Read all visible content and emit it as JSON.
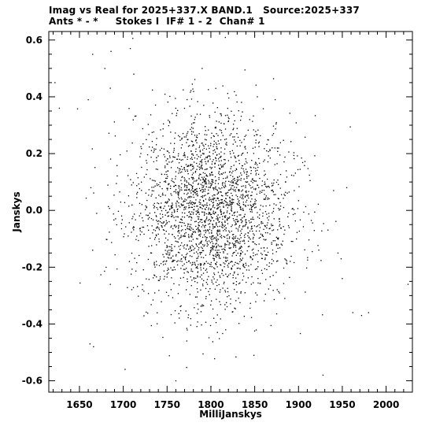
{
  "header": {
    "title_line_1": "Imag vs Real for 2025+337.X BAND.1   Source:2025+337",
    "title_line_2": "Ants * - *     Stokes I  IF# 1 - 2  Chan# 1"
  },
  "chart_data": {
    "type": "scatter",
    "title": "Imag vs Real for 2025+337.X BAND.1   Source:2025+337",
    "subtitle": "Ants * - *     Stokes I  IF# 1 - 2  Chan# 1",
    "xlabel": "MilliJanskys",
    "ylabel": "Janskys",
    "xlim": [
      1615,
      2030
    ],
    "ylim": [
      -0.64,
      0.63
    ],
    "x_ticks": [
      1650,
      1700,
      1750,
      1800,
      1850,
      1900,
      1950,
      2000
    ],
    "x_tick_labels": [
      "1650",
      "1700",
      "1750",
      "1800",
      "1850",
      "1900",
      "1950",
      "2000"
    ],
    "y_ticks": [
      -0.6,
      -0.4,
      -0.2,
      0.0,
      0.2,
      0.4,
      0.6
    ],
    "y_tick_labels": [
      "-0.6",
      "-0.4",
      "-0.2",
      "0.0",
      "0.2",
      "0.4",
      "0.6"
    ],
    "grid": false,
    "marker_color": "#000000",
    "cluster": {
      "x_center": 1800,
      "y_center": 0.0,
      "x_sd": 45,
      "y_sd": 0.17,
      "count": 2600
    },
    "outliers": [
      {
        "x": 1622,
        "y": 0.45
      },
      {
        "x": 1627,
        "y": 0.36
      },
      {
        "x": 1660,
        "y": 0.39
      },
      {
        "x": 1665,
        "y": 0.55
      },
      {
        "x": 1686,
        "y": 0.56
      },
      {
        "x": 1679,
        "y": 0.5
      },
      {
        "x": 1708,
        "y": 0.57
      },
      {
        "x": 1712,
        "y": 0.48
      },
      {
        "x": 1790,
        "y": 0.5
      },
      {
        "x": 1663,
        "y": 0.08
      },
      {
        "x": 1665,
        "y": -0.14
      },
      {
        "x": 1662,
        "y": -0.47
      },
      {
        "x": 1666,
        "y": -0.48
      },
      {
        "x": 1702,
        "y": -0.56
      },
      {
        "x": 1760,
        "y": -0.6
      },
      {
        "x": 1800,
        "y": -0.62
      },
      {
        "x": 1820,
        "y": -0.63
      },
      {
        "x": 1928,
        "y": -0.58
      },
      {
        "x": 1962,
        "y": -0.36
      },
      {
        "x": 1972,
        "y": -0.37
      },
      {
        "x": 1980,
        "y": -0.36
      },
      {
        "x": 2025,
        "y": -0.26
      },
      {
        "x": 1955,
        "y": 0.08
      },
      {
        "x": 1940,
        "y": 0.07
      },
      {
        "x": 1945,
        "y": -0.15
      },
      {
        "x": 1950,
        "y": -0.24
      }
    ]
  }
}
